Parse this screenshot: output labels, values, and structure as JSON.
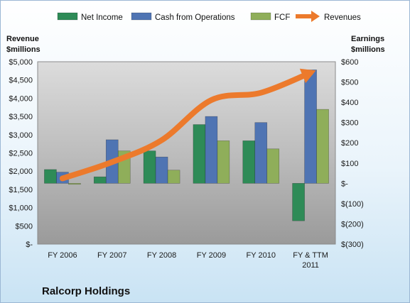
{
  "company_name": "Ralcorp Holdings",
  "chart_data": {
    "type": "bar",
    "categories": [
      [
        "FY 2006"
      ],
      [
        "FY 2007"
      ],
      [
        "FY 2008"
      ],
      [
        "FY 2009"
      ],
      [
        "FY 2010"
      ],
      [
        "FY & TTM",
        "2011"
      ]
    ],
    "series": [
      {
        "name": "Net Income",
        "axis": "right",
        "color": "#2e8b57",
        "values": [
          68,
          32,
          160,
          290,
          210,
          -185
        ]
      },
      {
        "name": "Cash from Operations",
        "axis": "right",
        "color": "#4f74b3",
        "values": [
          55,
          215,
          130,
          330,
          300,
          560
        ]
      },
      {
        "name": "FCF",
        "axis": "right",
        "color": "#8fae5a",
        "values": [
          -5,
          160,
          65,
          210,
          170,
          365
        ]
      },
      {
        "name": "Revenues",
        "axis": "left",
        "type": "line",
        "color": "#ec7a2c",
        "values": [
          1800,
          2250,
          2850,
          3950,
          4150,
          4700
        ]
      }
    ],
    "left_axis": {
      "title": [
        "Revenue",
        "$millions"
      ],
      "ylim": [
        0,
        5000
      ],
      "ticks": [
        0,
        500,
        1000,
        1500,
        2000,
        2500,
        3000,
        3500,
        4000,
        4500,
        5000
      ],
      "tick_labels": [
        "$-",
        "$500",
        "$1,000",
        "$1,500",
        "$2,000",
        "$2,500",
        "$3,000",
        "$3,500",
        "$4,000",
        "$4,500",
        "$5,000"
      ]
    },
    "right_axis": {
      "title": [
        "Earnings",
        "$millions"
      ],
      "ylim": [
        -300,
        600
      ],
      "ticks": [
        -300,
        -200,
        -100,
        0,
        100,
        200,
        300,
        400,
        500,
        600
      ],
      "tick_labels": [
        "$(300)",
        "$(200)",
        "$(100)",
        "$-",
        "$100",
        "$200",
        "$300",
        "$400",
        "$500",
        "$600"
      ]
    },
    "legend_position": "top",
    "grid": false
  }
}
